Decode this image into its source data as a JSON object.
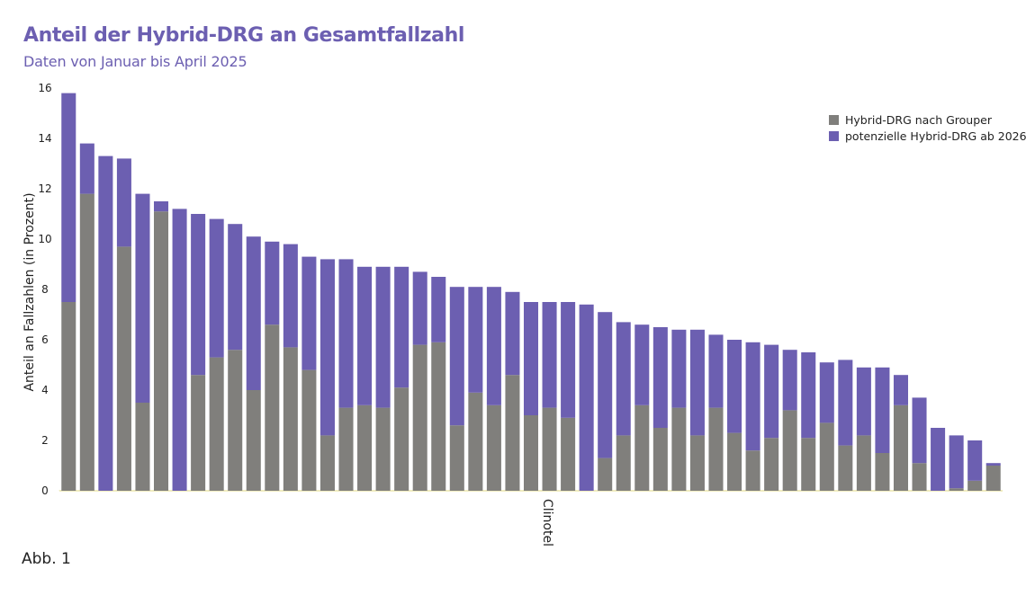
{
  "colors": {
    "title": "#6c5fb1",
    "grouper": "#807f7c",
    "potential": "#6c5fb1",
    "baseline": "#f0ecc0"
  },
  "figure_caption": "Abb. 1",
  "chart_data": {
    "type": "bar",
    "stacked": true,
    "title": "Anteil der Hybrid-DRG an Gesamtfallzahl",
    "subtitle": "Daten von Januar bis April 2025",
    "xlabel": "Clinotel",
    "ylabel": "Anteil an Fallzahlen (in Prozent)",
    "ylim": [
      0,
      16
    ],
    "yticks": [
      "0",
      "2",
      "4",
      "6",
      "8",
      "10",
      "12",
      "14",
      "16"
    ],
    "grid": false,
    "legend_position": "top-right",
    "series": [
      {
        "name": "Hybrid-DRG nach Grouper",
        "values": [
          7.5,
          11.8,
          0,
          9.7,
          3.5,
          11.1,
          0,
          4.6,
          5.3,
          5.6,
          4.0,
          6.6,
          5.7,
          4.8,
          2.2,
          3.3,
          3.4,
          3.3,
          4.1,
          5.8,
          5.9,
          2.6,
          3.9,
          3.4,
          4.6,
          3.0,
          3.3,
          2.9,
          0,
          1.3,
          2.2,
          3.4,
          2.5,
          3.3,
          2.2,
          3.3,
          2.3,
          1.6,
          2.1,
          3.2,
          2.1,
          2.7,
          1.8,
          2.2,
          1.5,
          3.4,
          1.1,
          0,
          0.1,
          0.4,
          1.0
        ]
      },
      {
        "name": "potenzielle Hybrid-DRG ab 2026",
        "values": [
          8.3,
          2.0,
          13.3,
          3.5,
          8.3,
          0.4,
          11.2,
          6.4,
          5.5,
          5.0,
          6.1,
          3.3,
          4.1,
          4.5,
          7.0,
          5.9,
          5.5,
          5.6,
          4.8,
          2.9,
          2.6,
          5.5,
          4.2,
          4.7,
          3.3,
          4.5,
          4.2,
          4.6,
          7.4,
          5.8,
          4.5,
          3.2,
          4.0,
          3.1,
          4.2,
          2.9,
          3.7,
          4.3,
          3.7,
          2.4,
          3.4,
          2.4,
          3.4,
          2.7,
          3.4,
          1.2,
          2.6,
          2.5,
          2.1,
          1.6,
          0.1
        ]
      }
    ]
  }
}
